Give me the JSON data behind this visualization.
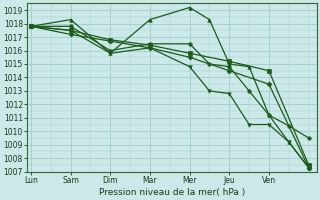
{
  "xlabel": "Pression niveau de la mer( hPa )",
  "background_color": "#cde8e8",
  "grid_color": "#a0cccc",
  "line_color": "#1a5c1a",
  "marker_color": "#1a5c1a",
  "ylim": [
    1007,
    1019.5
  ],
  "yticks": [
    1007,
    1008,
    1009,
    1010,
    1011,
    1012,
    1013,
    1014,
    1015,
    1016,
    1017,
    1018,
    1019
  ],
  "xtick_labels": [
    "Lun",
    "Sam",
    "Dim",
    "Mar",
    "Mer",
    "Jeu",
    "Ven"
  ],
  "xtick_positions": [
    0,
    1,
    2,
    3,
    4,
    5,
    6
  ],
  "xlim": [
    -0.1,
    7.2
  ],
  "series": [
    {
      "x": [
        0,
        1,
        2,
        3,
        4,
        5,
        6,
        7
      ],
      "y": [
        1017.8,
        1017.2,
        1016.7,
        1016.2,
        1015.5,
        1014.5,
        1013.5,
        1007.3
      ],
      "marker": "D",
      "ms": 2.5,
      "lw": 0.9
    },
    {
      "x": [
        0,
        1,
        2,
        3,
        4,
        5,
        6,
        7
      ],
      "y": [
        1017.8,
        1017.5,
        1016.8,
        1016.4,
        1015.8,
        1015.2,
        1014.5,
        1007.5
      ],
      "marker": "s",
      "ms": 2.5,
      "lw": 0.9
    },
    {
      "x": [
        0,
        1,
        2,
        3,
        4,
        4.5,
        5,
        5.5,
        6,
        6.5,
        7
      ],
      "y": [
        1017.8,
        1018.3,
        1015.8,
        1018.3,
        1019.2,
        1018.3,
        1015.0,
        1014.8,
        1011.2,
        1009.2,
        1007.3
      ],
      "marker": "^",
      "ms": 2.5,
      "lw": 0.9
    },
    {
      "x": [
        0,
        1,
        2,
        3,
        4,
        4.5,
        5,
        5.5,
        6,
        6.5,
        7
      ],
      "y": [
        1017.8,
        1017.8,
        1016.0,
        1016.5,
        1016.5,
        1015.0,
        1014.8,
        1013.0,
        1011.2,
        1010.4,
        1009.5
      ],
      "marker": "o",
      "ms": 2.5,
      "lw": 0.9
    },
    {
      "x": [
        0,
        1,
        2,
        3,
        4,
        4.5,
        5,
        5.5,
        6,
        6.5,
        7
      ],
      "y": [
        1017.8,
        1017.5,
        1015.8,
        1016.2,
        1014.8,
        1013.0,
        1012.8,
        1010.5,
        1010.5,
        1009.2,
        1007.3
      ],
      "marker": "v",
      "ms": 2.5,
      "lw": 0.9
    }
  ]
}
